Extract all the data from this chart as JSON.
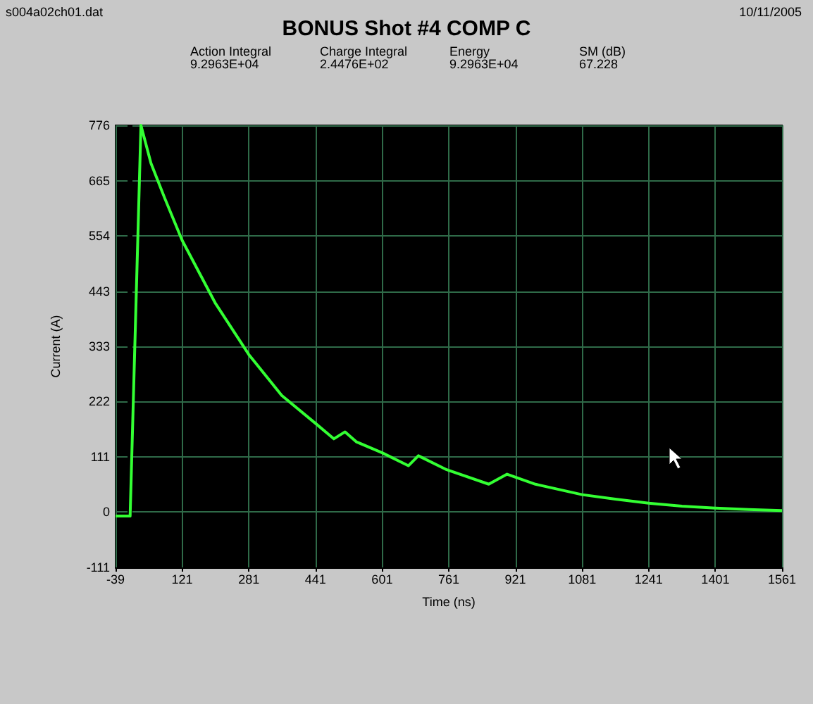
{
  "chart_data": {
    "type": "line",
    "title": "BONUS Shot #4 COMP C",
    "xlabel": "Time (ns)",
    "ylabel": "Current (A)",
    "annotations": [
      "s004a02ch01.dat",
      "10/11/2005",
      "Action Integral\n9.2963E+04",
      "Charge Integral\n2.4476E+02",
      "Energy\n9.2963E+04",
      "SM (dB)\n67.228"
    ],
    "series": [
      {
        "color": "#33ff33",
        "x": [
          -39,
          -20,
          -4,
          -2,
          22,
          46,
          79,
          121,
          200,
          281,
          360,
          441,
          485,
          512,
          539,
          601,
          664,
          688,
          756,
          857,
          901,
          969,
          1081,
          1161,
          1241,
          1321,
          1401,
          1481,
          1561
        ],
        "values": [
          -8,
          -8,
          -8,
          -8,
          776,
          700,
          630,
          545,
          420,
          316,
          234,
          178,
          147,
          161,
          141,
          119,
          93,
          113,
          85,
          56,
          76,
          56,
          35,
          26,
          18,
          12,
          8,
          5,
          3
        ]
      }
    ],
    "xlim": [
      -39,
      1561
    ],
    "xticks": [
      -39,
      121,
      281,
      441,
      601,
      761,
      921,
      1081,
      1241,
      1401,
      1561
    ],
    "ylim": [
      -111,
      776
    ],
    "yticks": [
      -111,
      0,
      111,
      222,
      333,
      443,
      554,
      665,
      776
    ],
    "grid": true,
    "marker": "none",
    "line_style": "solid"
  }
}
